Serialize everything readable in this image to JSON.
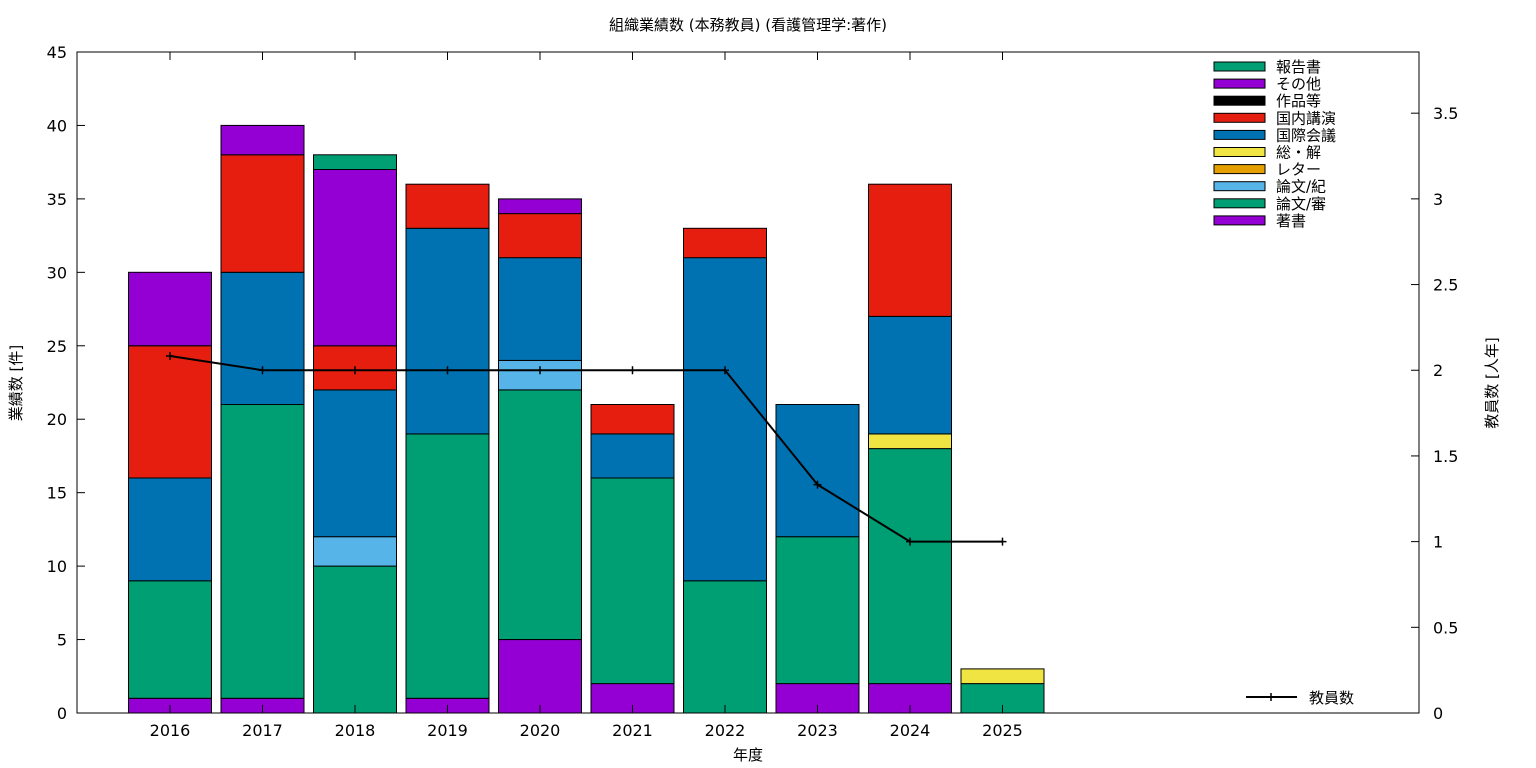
{
  "chart_data": {
    "type": "bar",
    "stacked": true,
    "title": "組織業績数 (本務教員) (看護管理学:著作)",
    "xlabel": "年度",
    "ylabel": "業績数 [件]",
    "y2label": "教員数 [人年]",
    "ylim": [
      0,
      45
    ],
    "y2lim": [
      0,
      3.857
    ],
    "yticks": [
      0,
      5,
      10,
      15,
      20,
      25,
      30,
      35,
      40,
      45
    ],
    "y2ticks": [
      0,
      0.5,
      1,
      1.5,
      2,
      2.5,
      3,
      3.5
    ],
    "categories": [
      "2016",
      "2017",
      "2018",
      "2019",
      "2020",
      "2021",
      "2022",
      "2023",
      "2024",
      "2025"
    ],
    "series": [
      {
        "name": "著書",
        "color": "#9400d3",
        "values": [
          1,
          1,
          0,
          1,
          5,
          2,
          0,
          2,
          2,
          0
        ]
      },
      {
        "name": "論文/審",
        "color": "#009e73",
        "values": [
          8,
          20,
          10,
          18,
          17,
          14,
          9,
          10,
          16,
          2
        ]
      },
      {
        "name": "論文/紀",
        "color": "#56b4e9",
        "values": [
          0,
          0,
          2,
          0,
          2,
          0,
          0,
          0,
          0,
          0
        ]
      },
      {
        "name": "レター",
        "color": "#e69f00",
        "values": [
          0,
          0,
          0,
          0,
          0,
          0,
          0,
          0,
          0,
          0
        ]
      },
      {
        "name": "総・解",
        "color": "#f0e442",
        "values": [
          0,
          0,
          0,
          0,
          0,
          0,
          0,
          0,
          1,
          1
        ]
      },
      {
        "name": "国際会議",
        "color": "#0072b2",
        "values": [
          7,
          9,
          10,
          14,
          7,
          3,
          22,
          9,
          8,
          0
        ]
      },
      {
        "name": "国内講演",
        "color": "#e51e10",
        "values": [
          9,
          8,
          3,
          3,
          3,
          2,
          2,
          0,
          9,
          0
        ]
      },
      {
        "name": "作品等",
        "color": "#000000",
        "values": [
          0,
          0,
          0,
          0,
          0,
          0,
          0,
          0,
          0,
          0
        ]
      },
      {
        "name": "その他",
        "color": "#9400d3",
        "values": [
          5,
          2,
          12,
          0,
          1,
          0,
          0,
          0,
          0,
          0
        ]
      },
      {
        "name": "報告書",
        "color": "#009e73",
        "values": [
          0,
          0,
          1,
          0,
          0,
          0,
          0,
          0,
          0,
          0
        ]
      }
    ],
    "line_series": {
      "name": "教員数",
      "color": "#000000",
      "axis": "y2",
      "values": [
        2.083,
        2.0,
        2.0,
        2.0,
        2.0,
        2.0,
        2.0,
        1.333,
        1.0,
        1.0
      ]
    },
    "legend_order": [
      "報告書",
      "その他",
      "作品等",
      "国内講演",
      "国際会議",
      "総・解",
      "レター",
      "論文/紀",
      "論文/審",
      "著書"
    ],
    "legend_position": "top-right",
    "line_legend_position": "bottom-right",
    "grid": false
  }
}
